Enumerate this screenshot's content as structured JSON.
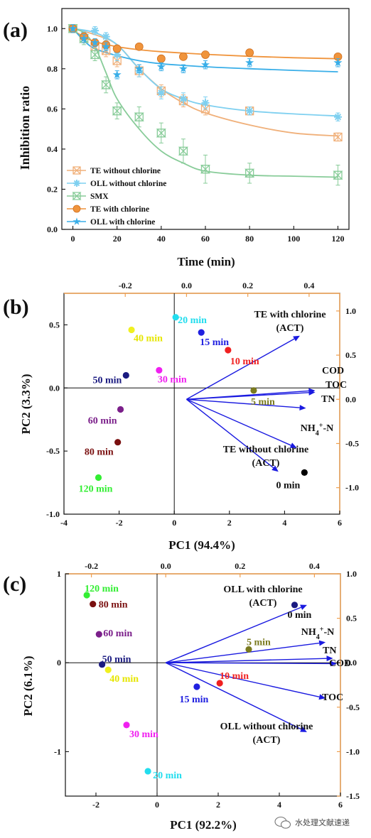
{
  "chart_data": [
    {
      "panel": "(a)",
      "type": "line",
      "xlabel": "Time (min)",
      "ylabel": "Inhibition ratio",
      "xlim": [
        -5,
        125
      ],
      "ylim": [
        0,
        1.1
      ],
      "xticks": [
        "0",
        "20",
        "40",
        "60",
        "80",
        "100",
        "120"
      ],
      "yticks": [
        "0.0",
        "0.2",
        "0.4",
        "0.6",
        "0.8",
        "1.0"
      ],
      "legend_position": "bottom-left",
      "series": [
        {
          "name": "TE without chlorine",
          "marker": "box-x",
          "color": "#f0b07a",
          "x": [
            0,
            5,
            10,
            15,
            20,
            30,
            40,
            50,
            60,
            80,
            120
          ],
          "y": [
            1.0,
            0.95,
            0.91,
            0.89,
            0.84,
            0.79,
            0.69,
            0.64,
            0.6,
            0.59,
            0.46
          ],
          "err": [
            0.02,
            0.02,
            0.02,
            0.03,
            0.03,
            0.03,
            0.03,
            0.03,
            0.03,
            0.02,
            0.02
          ],
          "fit": [
            [
              0,
              1.0
            ],
            [
              10,
              0.97
            ],
            [
              20,
              0.92
            ],
            [
              30,
              0.8
            ],
            [
              40,
              0.7
            ],
            [
              50,
              0.63
            ],
            [
              60,
              0.58
            ],
            [
              80,
              0.52
            ],
            [
              100,
              0.48
            ],
            [
              120,
              0.465
            ]
          ]
        },
        {
          "name": "OLL without chlorine",
          "marker": "asterisk",
          "color": "#7fd0f0",
          "x": [
            0,
            5,
            10,
            15,
            20,
            30,
            40,
            50,
            60,
            80,
            120
          ],
          "y": [
            1.0,
            0.97,
            0.99,
            0.96,
            0.87,
            0.79,
            0.68,
            0.65,
            0.63,
            0.59,
            0.56
          ],
          "err": [
            0.02,
            0.02,
            0.02,
            0.02,
            0.03,
            0.03,
            0.03,
            0.03,
            0.03,
            0.02,
            0.02
          ],
          "fit": [
            [
              0,
              1.0
            ],
            [
              10,
              0.98
            ],
            [
              20,
              0.92
            ],
            [
              30,
              0.8
            ],
            [
              40,
              0.7
            ],
            [
              50,
              0.65
            ],
            [
              60,
              0.62
            ],
            [
              80,
              0.59
            ],
            [
              100,
              0.575
            ],
            [
              120,
              0.565
            ]
          ]
        },
        {
          "name": "SMX",
          "marker": "hourglass-x",
          "color": "#88cc99",
          "x": [
            0,
            5,
            10,
            15,
            20,
            30,
            40,
            50,
            60,
            80,
            120
          ],
          "y": [
            1.0,
            0.95,
            0.87,
            0.72,
            0.59,
            0.56,
            0.48,
            0.39,
            0.3,
            0.28,
            0.27
          ],
          "err": [
            0.02,
            0.03,
            0.03,
            0.04,
            0.04,
            0.05,
            0.05,
            0.06,
            0.07,
            0.05,
            0.05
          ],
          "fit": [
            [
              0,
              1.0
            ],
            [
              5,
              0.98
            ],
            [
              10,
              0.91
            ],
            [
              15,
              0.78
            ],
            [
              20,
              0.65
            ],
            [
              30,
              0.5
            ],
            [
              40,
              0.39
            ],
            [
              50,
              0.33
            ],
            [
              60,
              0.29
            ],
            [
              80,
              0.27
            ],
            [
              100,
              0.265
            ],
            [
              120,
              0.26
            ]
          ]
        },
        {
          "name": "TE with chlorine",
          "marker": "circle",
          "color": "#f0943c",
          "x": [
            0,
            5,
            10,
            15,
            20,
            30,
            40,
            50,
            60,
            80,
            120
          ],
          "y": [
            1.0,
            0.96,
            0.93,
            0.92,
            0.9,
            0.91,
            0.85,
            0.86,
            0.87,
            0.88,
            0.86
          ],
          "err": [
            0.01,
            0.01,
            0.01,
            0.01,
            0.01,
            0.01,
            0.01,
            0.01,
            0.01,
            0.01,
            0.01
          ],
          "fit": [
            [
              0,
              0.99
            ],
            [
              5,
              0.96
            ],
            [
              10,
              0.935
            ],
            [
              20,
              0.91
            ],
            [
              30,
              0.895
            ],
            [
              40,
              0.885
            ],
            [
              60,
              0.872
            ],
            [
              80,
              0.862
            ],
            [
              100,
              0.855
            ],
            [
              120,
              0.85
            ]
          ]
        },
        {
          "name": "OLL with chlorine",
          "marker": "star",
          "color": "#39aee8",
          "x": [
            0,
            5,
            10,
            15,
            20,
            30,
            40,
            50,
            60,
            80,
            120
          ],
          "y": [
            1.0,
            0.95,
            0.93,
            0.91,
            0.77,
            0.8,
            0.81,
            0.8,
            0.82,
            0.83,
            0.83
          ],
          "err": [
            0.02,
            0.02,
            0.02,
            0.02,
            0.02,
            0.02,
            0.02,
            0.02,
            0.02,
            0.02,
            0.02
          ],
          "fit": [
            [
              0,
              1.0
            ],
            [
              5,
              0.94
            ],
            [
              10,
              0.9
            ],
            [
              20,
              0.865
            ],
            [
              30,
              0.84
            ],
            [
              40,
              0.825
            ],
            [
              60,
              0.81
            ],
            [
              80,
              0.8
            ],
            [
              100,
              0.792
            ],
            [
              120,
              0.785
            ]
          ]
        }
      ]
    },
    {
      "panel": "(b)",
      "type": "scatter",
      "xlabel": "PC1 (94.4%)",
      "ylabel": "PC2 (3.3%)",
      "xlim": [
        -4,
        6
      ],
      "ylim": [
        -1.0,
        0.75
      ],
      "xticks": [
        "-4",
        "-2",
        "0",
        "2",
        "4",
        "6"
      ],
      "yticks": [
        "-1.0",
        "-0.5",
        "0.0",
        "0.5"
      ],
      "top_xticks": [
        "-0.2",
        "0.0",
        "0.2",
        "0.4"
      ],
      "top_xvals": [
        -0.2,
        0.0,
        0.2,
        0.4
      ],
      "top_xlim": [
        -0.4,
        0.5
      ],
      "right_yticks": [
        "-1.0",
        "-0.5",
        "0.0",
        "0.5",
        "1.0"
      ],
      "right_yvals": [
        -1.0,
        -0.5,
        0.0,
        0.5,
        1.0
      ],
      "right_ylim": [
        -1.3,
        1.2
      ],
      "points": [
        {
          "label": "0 min",
          "x": 4.72,
          "y": -0.67,
          "color": "#000000",
          "labelColor": "#111111"
        },
        {
          "label": "5 min",
          "x": 2.88,
          "y": -0.02,
          "color": "#7a7a1f",
          "labelColor": "#7a7a1f"
        },
        {
          "label": "10 min",
          "x": 1.95,
          "y": 0.3,
          "color": "#f02020",
          "labelColor": "#f02020"
        },
        {
          "label": "15 min",
          "x": 0.98,
          "y": 0.44,
          "color": "#2020e0",
          "labelColor": "#2020e0"
        },
        {
          "label": "20 min",
          "x": 0.05,
          "y": 0.56,
          "color": "#22ddee",
          "labelColor": "#22ddee"
        },
        {
          "label": "30 min",
          "x": -0.55,
          "y": 0.14,
          "color": "#f020f0",
          "labelColor": "#f020f0"
        },
        {
          "label": "40 min",
          "x": -1.55,
          "y": 0.46,
          "color": "#f0f020",
          "labelColor": "#e6e600"
        },
        {
          "label": "50 min",
          "x": -1.75,
          "y": 0.1,
          "color": "#1a1a80",
          "labelColor": "#1a1a80"
        },
        {
          "label": "60 min",
          "x": -1.95,
          "y": -0.17,
          "color": "#7b1f8a",
          "labelColor": "#7b1f8a"
        },
        {
          "label": "80 min",
          "x": -2.05,
          "y": -0.43,
          "color": "#7a1010",
          "labelColor": "#7a1010"
        },
        {
          "label": "120 min",
          "x": -2.75,
          "y": -0.71,
          "color": "#33ee33",
          "labelColor": "#33ee33"
        }
      ],
      "vectors": [
        {
          "label": "TE with chlorine (ACT)",
          "x": 0.37,
          "y": 0.72
        },
        {
          "label": "COD",
          "x": 0.42,
          "y": 0.1
        },
        {
          "label": "TOC",
          "x": 0.42,
          "y": 0.08
        },
        {
          "label": "TN",
          "x": 0.39,
          "y": -0.1
        },
        {
          "label": "NH4+-N",
          "x": 0.36,
          "y": -0.55
        },
        {
          "label": "TE without chlorine (ACT)",
          "x": 0.3,
          "y": -0.82
        }
      ]
    },
    {
      "panel": "(c)",
      "type": "scatter",
      "xlabel": "PC1 (92.2%)",
      "ylabel": "PC2 (6.1%)",
      "xlim": [
        -3,
        6
      ],
      "ylim": [
        -1.5,
        1.0
      ],
      "xticks": [
        "-2",
        "0",
        "2",
        "4",
        "6"
      ],
      "yticks": [
        "-1",
        "0",
        "1"
      ],
      "top_xticks": [
        "-0.2",
        "0.0",
        "0.2",
        "0.4"
      ],
      "top_xvals": [
        -0.2,
        0.0,
        0.2,
        0.4
      ],
      "top_xlim": [
        -0.27,
        0.47
      ],
      "right_yticks": [
        "-1.5",
        "-1.0",
        "-0.5",
        "0.0",
        "0.5",
        "1.0"
      ],
      "right_yvals": [
        -1.5,
        -1.0,
        -0.5,
        0.0,
        0.5,
        1.0
      ],
      "right_ylim": [
        -1.5,
        1.0
      ],
      "points": [
        {
          "label": "0 min",
          "x": 4.5,
          "y": 0.65,
          "color": "#1a1a80",
          "labelColor": "#111111"
        },
        {
          "label": "5 min",
          "x": 3.0,
          "y": 0.15,
          "color": "#7a7a1f",
          "labelColor": "#7a7a1f"
        },
        {
          "label": "10 min",
          "x": 2.05,
          "y": -0.23,
          "color": "#f02020",
          "labelColor": "#f02020"
        },
        {
          "label": "15 min",
          "x": 1.3,
          "y": -0.27,
          "color": "#2020e0",
          "labelColor": "#2020e0"
        },
        {
          "label": "20 min",
          "x": -0.3,
          "y": -1.22,
          "color": "#22ddee",
          "labelColor": "#22ddee"
        },
        {
          "label": "30 min",
          "x": -1.0,
          "y": -0.7,
          "color": "#f020f0",
          "labelColor": "#f020f0"
        },
        {
          "label": "40 min",
          "x": -1.6,
          "y": -0.08,
          "color": "#f0f020",
          "labelColor": "#e6e600"
        },
        {
          "label": "50 min",
          "x": -1.8,
          "y": -0.02,
          "color": "#1a1a80",
          "labelColor": "#1a1a80"
        },
        {
          "label": "60 min",
          "x": -1.9,
          "y": 0.32,
          "color": "#7b1f8a",
          "labelColor": "#7b1f8a"
        },
        {
          "label": "80 min",
          "x": -2.1,
          "y": 0.66,
          "color": "#7a1010",
          "labelColor": "#7a1010"
        },
        {
          "label": "120 min",
          "x": -2.3,
          "y": 0.76,
          "color": "#33ee33",
          "labelColor": "#33ee33"
        }
      ],
      "vectors": [
        {
          "label": "OLL with chlorine (ACT)",
          "x": 0.38,
          "y": 0.65
        },
        {
          "label": "NH4+-N",
          "x": 0.43,
          "y": 0.23
        },
        {
          "label": "TN",
          "x": 0.45,
          "y": 0.05
        },
        {
          "label": "COD",
          "x": 0.46,
          "y": -0.01
        },
        {
          "label": "TOC",
          "x": 0.43,
          "y": -0.4
        },
        {
          "label": "OLL without chlorine (ACT)",
          "x": 0.38,
          "y": -0.78
        }
      ]
    }
  ],
  "watermark": "水处理文献速递"
}
